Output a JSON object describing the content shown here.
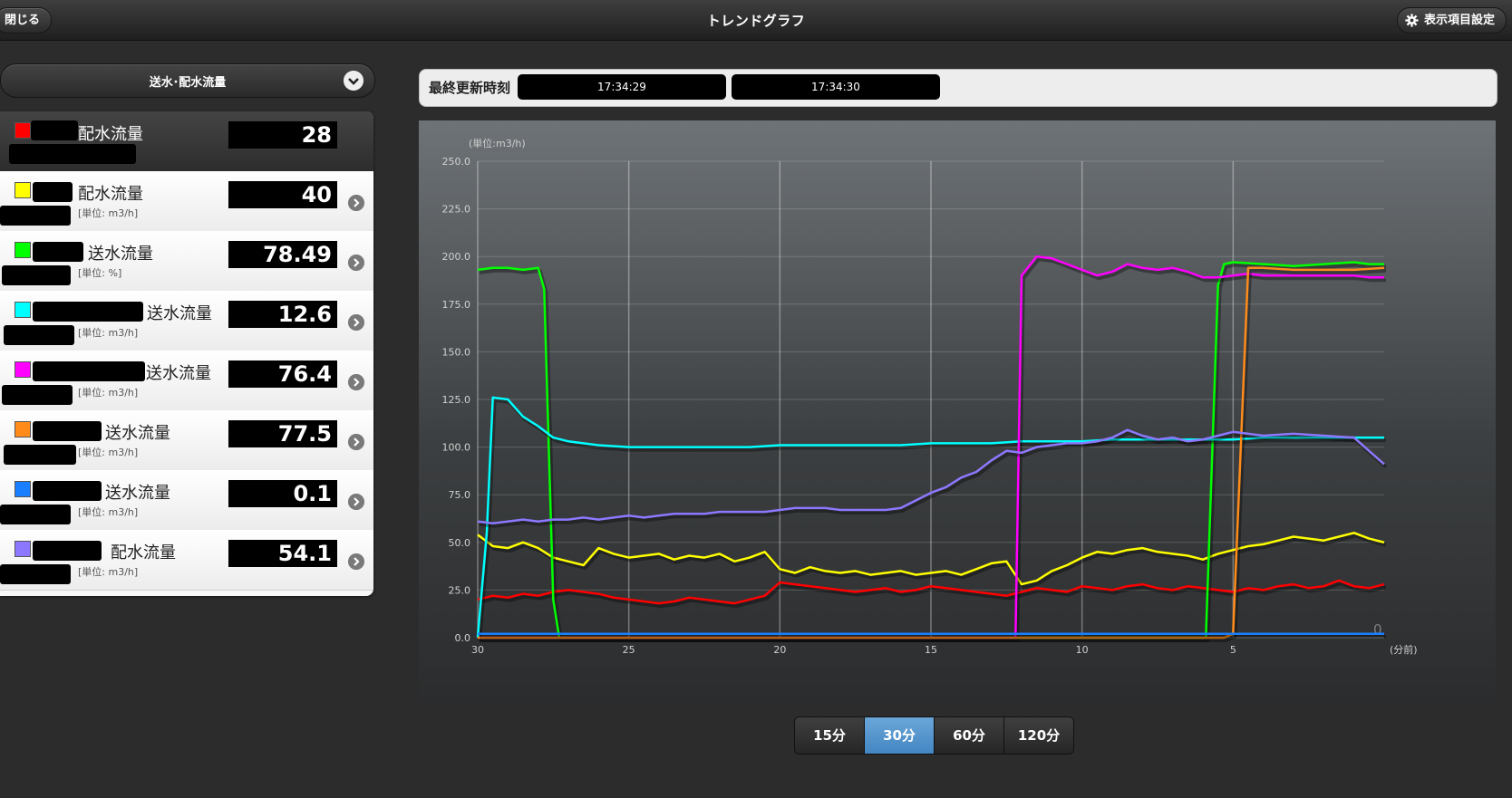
{
  "header": {
    "close_label": "閉じる",
    "title": "トレンドグラフ",
    "settings_label": "表示項目設定",
    "settings_icon": "gear-icon"
  },
  "category_select": {
    "value": "送水･配水流量",
    "icon": "chevron-down-icon"
  },
  "last_updated": {
    "label": "最終更新時刻",
    "times": [
      "17:34:29",
      "17:34:30"
    ]
  },
  "sensors": [
    {
      "label": "配水流量",
      "unit": "",
      "value": "28",
      "color": "#ff0000",
      "active": true
    },
    {
      "label": "配水流量",
      "unit": "[単位: m3/h]",
      "value": "40",
      "color": "#ffff00"
    },
    {
      "label": "送水流量",
      "unit": "[単位: %]",
      "value": "78.49",
      "color": "#00ff00"
    },
    {
      "label": "送水流量",
      "unit": "[単位: m3/h]",
      "value": "12.6",
      "color": "#00ffff"
    },
    {
      "label": "送水流量",
      "unit": "[単位: m3/h]",
      "value": "76.4",
      "color": "#ff00ff"
    },
    {
      "label": "送水流量",
      "unit": "[単位: m3/h]",
      "value": "77.5",
      "color": "#ff8c1a"
    },
    {
      "label": "送水流量",
      "unit": "[単位: m3/h]",
      "value": "0.1",
      "color": "#1a7fff"
    },
    {
      "label": "配水流量",
      "unit": "[単位: m3/h]",
      "value": "54.1",
      "color": "#8c78ff"
    }
  ],
  "range_buttons": [
    "15分",
    "30分",
    "60分",
    "120分"
  ],
  "range_selected": "30分",
  "chart_data": {
    "type": "line",
    "unit_label": "(単位:m3/h)",
    "xlabel": "(分前)",
    "x_ticks": [
      30,
      25,
      20,
      15,
      10,
      5
    ],
    "x_range": [
      30,
      0
    ],
    "ylim": [
      0,
      250
    ],
    "y_ticks": [
      "0.0",
      "25.0",
      "50.0",
      "75.0",
      "100.0",
      "125.0",
      "150.0",
      "175.0",
      "200.0",
      "225.0",
      "250.0"
    ],
    "grid": true,
    "end_label": "0",
    "series": [
      {
        "color": "#ff0000",
        "points": [
          [
            30,
            20
          ],
          [
            29.5,
            22
          ],
          [
            29,
            21
          ],
          [
            28.5,
            23
          ],
          [
            28,
            22
          ],
          [
            27.5,
            24
          ],
          [
            27,
            25
          ],
          [
            26.5,
            24
          ],
          [
            26,
            23
          ],
          [
            25.5,
            21
          ],
          [
            25,
            20
          ],
          [
            24.5,
            19
          ],
          [
            24,
            18
          ],
          [
            23.5,
            19
          ],
          [
            23,
            21
          ],
          [
            22.5,
            20
          ],
          [
            22,
            19
          ],
          [
            21.5,
            18
          ],
          [
            21,
            20
          ],
          [
            20.5,
            22
          ],
          [
            20,
            29
          ],
          [
            19.5,
            28
          ],
          [
            19,
            27
          ],
          [
            18.5,
            26
          ],
          [
            18,
            25
          ],
          [
            17.5,
            24
          ],
          [
            17,
            25
          ],
          [
            16.5,
            26
          ],
          [
            16,
            24
          ],
          [
            15.5,
            25
          ],
          [
            15,
            27
          ],
          [
            14.5,
            26
          ],
          [
            14,
            25
          ],
          [
            13.5,
            24
          ],
          [
            13,
            23
          ],
          [
            12.5,
            22
          ],
          [
            12,
            24
          ],
          [
            11.5,
            26
          ],
          [
            11,
            25
          ],
          [
            10.5,
            24
          ],
          [
            10,
            27
          ],
          [
            9.5,
            26
          ],
          [
            9,
            25
          ],
          [
            8.5,
            27
          ],
          [
            8,
            28
          ],
          [
            7.5,
            26
          ],
          [
            7,
            25
          ],
          [
            6.5,
            27
          ],
          [
            6,
            26
          ],
          [
            5.5,
            25
          ],
          [
            5,
            24
          ],
          [
            4.5,
            26
          ],
          [
            4,
            25
          ],
          [
            3.5,
            27
          ],
          [
            3,
            28
          ],
          [
            2.5,
            26
          ],
          [
            2,
            27
          ],
          [
            1.5,
            30
          ],
          [
            1,
            27
          ],
          [
            0.5,
            26
          ],
          [
            0,
            28
          ]
        ]
      },
      {
        "color": "#ffff00",
        "points": [
          [
            30,
            54
          ],
          [
            29.5,
            48
          ],
          [
            29,
            47
          ],
          [
            28.5,
            50
          ],
          [
            28,
            47
          ],
          [
            27.5,
            42
          ],
          [
            27,
            40
          ],
          [
            26.5,
            38
          ],
          [
            26,
            47
          ],
          [
            25.5,
            44
          ],
          [
            25,
            42
          ],
          [
            24.5,
            43
          ],
          [
            24,
            44
          ],
          [
            23.5,
            41
          ],
          [
            23,
            43
          ],
          [
            22.5,
            42
          ],
          [
            22,
            44
          ],
          [
            21.5,
            40
          ],
          [
            21,
            42
          ],
          [
            20.5,
            45
          ],
          [
            20,
            36
          ],
          [
            19.5,
            34
          ],
          [
            19,
            37
          ],
          [
            18.5,
            35
          ],
          [
            18,
            34
          ],
          [
            17.5,
            35
          ],
          [
            17,
            33
          ],
          [
            16.5,
            34
          ],
          [
            16,
            35
          ],
          [
            15.5,
            33
          ],
          [
            15,
            34
          ],
          [
            14.5,
            35
          ],
          [
            14,
            33
          ],
          [
            13.5,
            36
          ],
          [
            13,
            39
          ],
          [
            12.5,
            40
          ],
          [
            12,
            28
          ],
          [
            11.5,
            30
          ],
          [
            11,
            35
          ],
          [
            10.5,
            38
          ],
          [
            10,
            42
          ],
          [
            9.5,
            45
          ],
          [
            9,
            44
          ],
          [
            8.5,
            46
          ],
          [
            8,
            47
          ],
          [
            7.5,
            45
          ],
          [
            7,
            44
          ],
          [
            6.5,
            43
          ],
          [
            6,
            41
          ],
          [
            5.5,
            44
          ],
          [
            5,
            46
          ],
          [
            4.5,
            48
          ],
          [
            4,
            49
          ],
          [
            3.5,
            51
          ],
          [
            3,
            53
          ],
          [
            2.5,
            52
          ],
          [
            2,
            51
          ],
          [
            1.5,
            53
          ],
          [
            1,
            55
          ],
          [
            0.5,
            52
          ],
          [
            0,
            50
          ]
        ]
      },
      {
        "color": "#00ff00",
        "points": [
          [
            30,
            193
          ],
          [
            29.5,
            194
          ],
          [
            29,
            194
          ],
          [
            28.5,
            193
          ],
          [
            28,
            194
          ],
          [
            27.8,
            183
          ],
          [
            27.5,
            20
          ],
          [
            27.3,
            0
          ],
          [
            6,
            0
          ],
          [
            5.9,
            0
          ],
          [
            5.5,
            185
          ],
          [
            5.3,
            196
          ],
          [
            5,
            197
          ],
          [
            4,
            196
          ],
          [
            3,
            195
          ],
          [
            2,
            196
          ],
          [
            1,
            197
          ],
          [
            0.5,
            196
          ],
          [
            0,
            196
          ]
        ]
      },
      {
        "color": "#00ffff",
        "points": [
          [
            30,
            0
          ],
          [
            29.7,
            55
          ],
          [
            29.5,
            126
          ],
          [
            29,
            125
          ],
          [
            28.5,
            116
          ],
          [
            28,
            111
          ],
          [
            27.5,
            105
          ],
          [
            27,
            103
          ],
          [
            26.5,
            102
          ],
          [
            26,
            101
          ],
          [
            25,
            100
          ],
          [
            24,
            100
          ],
          [
            23,
            100
          ],
          [
            22,
            100
          ],
          [
            21,
            100
          ],
          [
            20,
            101
          ],
          [
            19,
            101
          ],
          [
            18,
            101
          ],
          [
            17,
            101
          ],
          [
            16,
            101
          ],
          [
            15,
            102
          ],
          [
            14,
            102
          ],
          [
            13,
            102
          ],
          [
            12,
            103
          ],
          [
            11,
            103
          ],
          [
            10,
            103
          ],
          [
            9,
            104
          ],
          [
            8,
            104
          ],
          [
            7,
            104
          ],
          [
            6,
            104
          ],
          [
            5,
            104
          ],
          [
            4,
            105
          ],
          [
            3,
            105
          ],
          [
            2,
            105
          ],
          [
            1,
            105
          ],
          [
            0,
            105
          ]
        ]
      },
      {
        "color": "#ff00ff",
        "points": [
          [
            30,
            0
          ],
          [
            12.2,
            0
          ],
          [
            12,
            190
          ],
          [
            11.5,
            200
          ],
          [
            11,
            199
          ],
          [
            10.5,
            196
          ],
          [
            10,
            193
          ],
          [
            9.5,
            190
          ],
          [
            9,
            192
          ],
          [
            8.5,
            196
          ],
          [
            8,
            194
          ],
          [
            7.5,
            193
          ],
          [
            7,
            194
          ],
          [
            6.5,
            192
          ],
          [
            6,
            189
          ],
          [
            5.5,
            189
          ],
          [
            5,
            190
          ],
          [
            4.5,
            191
          ],
          [
            4,
            190
          ],
          [
            3,
            190
          ],
          [
            2,
            190
          ],
          [
            1,
            190
          ],
          [
            0.5,
            189
          ],
          [
            0,
            189
          ]
        ]
      },
      {
        "color": "#ff8c1a",
        "points": [
          [
            30,
            0
          ],
          [
            5.3,
            0
          ],
          [
            5,
            2
          ],
          [
            4.5,
            194
          ],
          [
            4,
            194
          ],
          [
            3,
            193
          ],
          [
            2,
            193
          ],
          [
            1,
            193
          ],
          [
            0,
            194
          ]
        ]
      },
      {
        "color": "#1a7fff",
        "points": [
          [
            30,
            2
          ],
          [
            20,
            2
          ],
          [
            10,
            2
          ],
          [
            5,
            2
          ],
          [
            0,
            2
          ]
        ]
      },
      {
        "color": "#8c78ff",
        "points": [
          [
            30,
            61
          ],
          [
            29.5,
            60
          ],
          [
            29,
            61
          ],
          [
            28.5,
            62
          ],
          [
            28,
            61
          ],
          [
            27.5,
            62
          ],
          [
            27,
            62
          ],
          [
            26.5,
            63
          ],
          [
            26,
            62
          ],
          [
            25.5,
            63
          ],
          [
            25,
            64
          ],
          [
            24.5,
            63
          ],
          [
            24,
            64
          ],
          [
            23.5,
            65
          ],
          [
            23,
            65
          ],
          [
            22.5,
            65
          ],
          [
            22,
            66
          ],
          [
            21.5,
            66
          ],
          [
            21,
            66
          ],
          [
            20.5,
            66
          ],
          [
            20,
            67
          ],
          [
            19.5,
            68
          ],
          [
            19,
            68
          ],
          [
            18.5,
            68
          ],
          [
            18,
            67
          ],
          [
            17.5,
            67
          ],
          [
            17,
            67
          ],
          [
            16.5,
            67
          ],
          [
            16,
            68
          ],
          [
            15.5,
            72
          ],
          [
            15,
            76
          ],
          [
            14.5,
            79
          ],
          [
            14,
            84
          ],
          [
            13.5,
            87
          ],
          [
            13,
            93
          ],
          [
            12.5,
            98
          ],
          [
            12,
            97
          ],
          [
            11.5,
            100
          ],
          [
            11,
            101
          ],
          [
            10.5,
            102
          ],
          [
            10,
            102
          ],
          [
            9.5,
            103
          ],
          [
            9,
            105
          ],
          [
            8.5,
            109
          ],
          [
            8,
            106
          ],
          [
            7.5,
            104
          ],
          [
            7,
            105
          ],
          [
            6.5,
            103
          ],
          [
            6,
            104
          ],
          [
            5.5,
            106
          ],
          [
            5,
            108
          ],
          [
            4.5,
            107
          ],
          [
            4,
            106
          ],
          [
            3,
            107
          ],
          [
            2,
            106
          ],
          [
            1,
            105
          ],
          [
            0.5,
            98
          ],
          [
            0,
            91
          ]
        ]
      }
    ]
  }
}
